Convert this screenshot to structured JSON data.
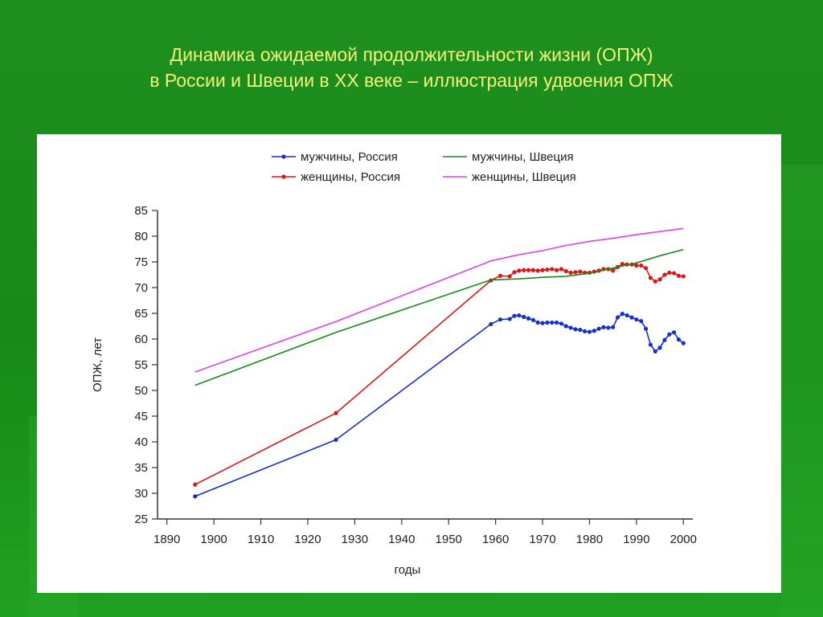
{
  "title": {
    "line1": "Динамика ожидаемой продолжительности жизни (ОПЖ)",
    "line2": "в России и Швеции в XX веке – иллюстрация удвоения ОПЖ"
  },
  "colors": {
    "background": "#1f8f1f",
    "title": "#f2f27a",
    "men_russia": "#1a2fc8",
    "women_russia": "#d81818",
    "men_sweden": "#1a8a1a",
    "women_sweden": "#e040e8"
  },
  "chart_data": {
    "type": "line",
    "xlabel": "годы",
    "ylabel": "ОПЖ, лет",
    "xlim": [
      1888,
      2002
    ],
    "ylim": [
      25,
      85
    ],
    "x_ticks": [
      1890,
      1900,
      1910,
      1920,
      1930,
      1940,
      1950,
      1960,
      1970,
      1980,
      1990,
      2000
    ],
    "y_ticks": [
      25,
      30,
      35,
      40,
      45,
      50,
      55,
      60,
      65,
      70,
      75,
      80,
      85
    ],
    "grid": false,
    "legend_position": "top",
    "series": [
      {
        "name": "мужчины, Россия",
        "color": "#1a2fc8",
        "markers": true,
        "x": [
          1896,
          1926,
          1959,
          1961,
          1963,
          1964,
          1965,
          1966,
          1967,
          1968,
          1969,
          1970,
          1971,
          1972,
          1973,
          1974,
          1975,
          1976,
          1977,
          1978,
          1979,
          1980,
          1981,
          1982,
          1983,
          1984,
          1985,
          1986,
          1987,
          1988,
          1989,
          1990,
          1991,
          1992,
          1993,
          1994,
          1995,
          1996,
          1997,
          1998,
          1999,
          2000
        ],
        "y": [
          29.4,
          40.4,
          62.9,
          63.8,
          63.9,
          64.5,
          64.6,
          64.3,
          64.0,
          63.7,
          63.2,
          63.1,
          63.2,
          63.2,
          63.2,
          63.0,
          62.5,
          62.2,
          61.9,
          61.8,
          61.5,
          61.4,
          61.6,
          62.0,
          62.3,
          62.2,
          62.3,
          64.2,
          64.9,
          64.6,
          64.2,
          63.8,
          63.5,
          62.0,
          58.9,
          57.6,
          58.3,
          59.8,
          60.9,
          61.3,
          59.9,
          59.2
        ]
      },
      {
        "name": "женщины, Россия",
        "color": "#d81818",
        "markers": true,
        "x": [
          1896,
          1926,
          1959,
          1961,
          1963,
          1964,
          1965,
          1966,
          1967,
          1968,
          1969,
          1970,
          1971,
          1972,
          1973,
          1974,
          1975,
          1976,
          1977,
          1978,
          1979,
          1980,
          1981,
          1982,
          1983,
          1984,
          1985,
          1986,
          1987,
          1988,
          1989,
          1990,
          1991,
          1992,
          1993,
          1994,
          1995,
          1996,
          1997,
          1998,
          1999,
          2000
        ],
        "y": [
          31.7,
          45.6,
          71.4,
          72.3,
          72.2,
          73.0,
          73.3,
          73.4,
          73.4,
          73.4,
          73.3,
          73.4,
          73.5,
          73.6,
          73.4,
          73.6,
          73.2,
          72.9,
          73.0,
          73.1,
          72.9,
          72.9,
          73.1,
          73.3,
          73.6,
          73.6,
          73.3,
          74.0,
          74.6,
          74.5,
          74.5,
          74.3,
          74.3,
          73.8,
          71.9,
          71.2,
          71.6,
          72.5,
          72.9,
          72.8,
          72.3,
          72.2
        ]
      },
      {
        "name": "мужчины, Швеция",
        "color": "#1a8a1a",
        "markers": false,
        "x": [
          1896,
          1926,
          1959,
          1965,
          1970,
          1975,
          1980,
          1985,
          1990,
          1995,
          2000
        ],
        "y": [
          51.0,
          61.3,
          71.5,
          71.7,
          72.0,
          72.2,
          72.8,
          73.8,
          74.8,
          76.2,
          77.4
        ]
      },
      {
        "name": "женщины, Швеция",
        "color": "#e040e8",
        "markers": false,
        "x": [
          1896,
          1926,
          1959,
          1965,
          1970,
          1975,
          1980,
          1985,
          1990,
          1995,
          2000
        ],
        "y": [
          53.6,
          63.4,
          75.2,
          76.4,
          77.2,
          78.2,
          79.0,
          79.6,
          80.3,
          80.9,
          81.5
        ]
      }
    ]
  }
}
